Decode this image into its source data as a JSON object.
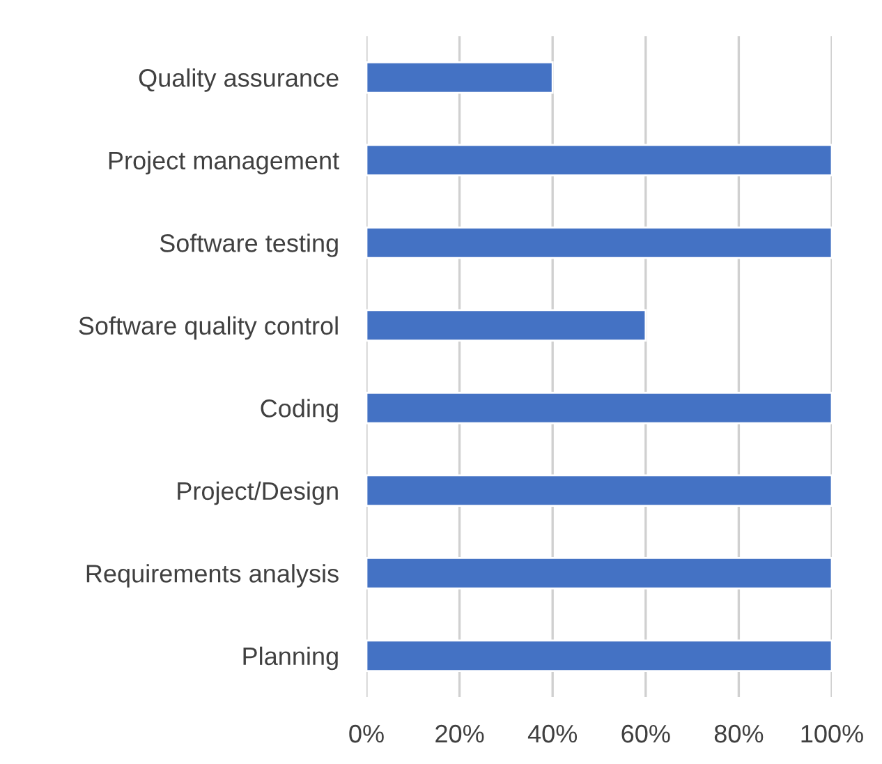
{
  "chart_data": {
    "type": "bar",
    "orientation": "horizontal",
    "categories": [
      "Quality assurance",
      "Project management",
      "Software testing",
      "Software quality control",
      "Coding",
      "Project/Design",
      "Requirements analysis",
      "Planning"
    ],
    "values": [
      40,
      100,
      100,
      60,
      100,
      100,
      100,
      100
    ],
    "color": "#4472c4",
    "xlim": [
      0,
      100
    ],
    "xticks": [
      {
        "value": 0,
        "label": "0%"
      },
      {
        "value": 20,
        "label": "20%"
      },
      {
        "value": 40,
        "label": "40%"
      },
      {
        "value": 60,
        "label": "60%"
      },
      {
        "value": 80,
        "label": "80%"
      },
      {
        "value": 100,
        "label": "100%"
      }
    ],
    "grid": "x",
    "legend": false
  }
}
